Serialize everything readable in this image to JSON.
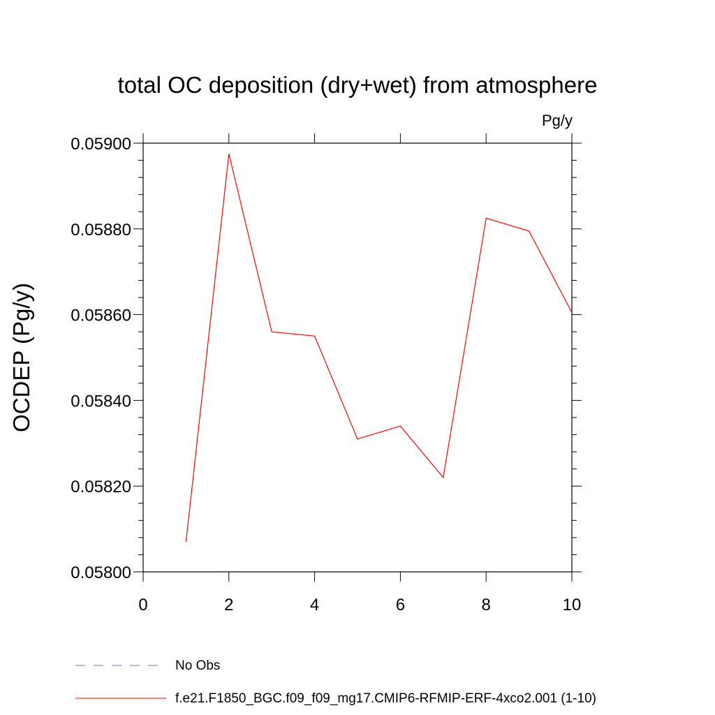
{
  "chart_data": {
    "type": "line",
    "title": "total OC deposition (dry+wet) from atmosphere",
    "units_label": "Pg/y",
    "xlabel": "",
    "ylabel": "OCDEP  (Pg/y)",
    "xlim": [
      0,
      10
    ],
    "ylim": [
      0.058,
      0.059
    ],
    "x_ticks": [
      0,
      2,
      4,
      6,
      8,
      10
    ],
    "x_tick_labels": [
      "0",
      "2",
      "4",
      "6",
      "8",
      "10"
    ],
    "y_ticks": [
      0.058,
      0.0582,
      0.0584,
      0.0586,
      0.0588,
      0.059
    ],
    "y_tick_labels": [
      "0.05800",
      "0.05820",
      "0.05840",
      "0.05860",
      "0.05880",
      "0.05900"
    ],
    "grid": false,
    "legend_position": "bottom-left",
    "series": [
      {
        "name": "f.e21.F1850_BGC.f09_f09_mg17.CMIP6-RFMIP-ERF-4xco2.001 (1-10)",
        "color": "#ff0000",
        "x": [
          1,
          2,
          3,
          4,
          5,
          6,
          7,
          8,
          9,
          10
        ],
        "y": [
          0.05807,
          0.058975,
          0.05856,
          0.05855,
          0.05831,
          0.05834,
          0.05822,
          0.058825,
          0.058795,
          0.058605
        ]
      }
    ],
    "legend": [
      {
        "label": "No Obs",
        "color": "#7a6fb0",
        "style": "dashed"
      },
      {
        "label": "f.e21.F1850_BGC.f09_f09_mg17.CMIP6-RFMIP-ERF-4xco2.001 (1-10)",
        "color": "#ff0000",
        "style": "solid"
      }
    ]
  }
}
